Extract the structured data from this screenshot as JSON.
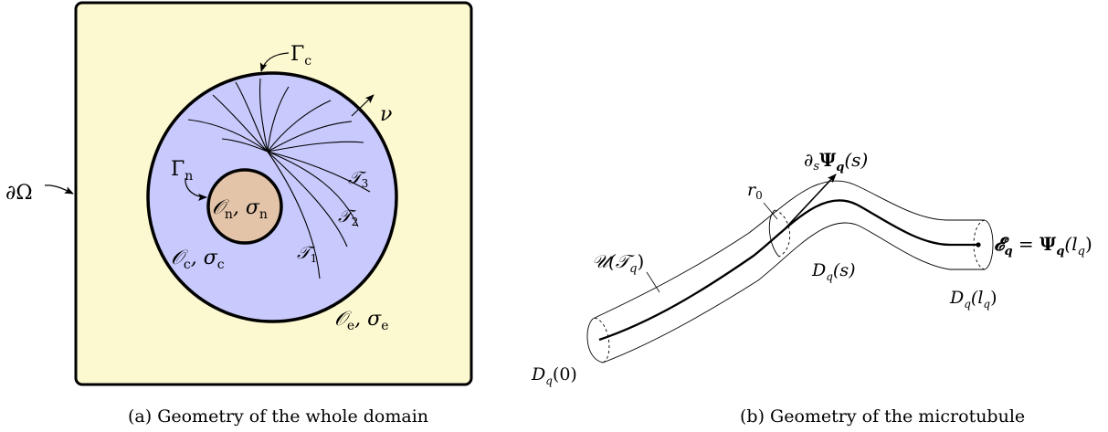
{
  "figure_a": {
    "colors": {
      "domain": "#fcf8cf",
      "cell": "#c8c9fc",
      "nucleus": "#e3c4a8"
    },
    "labels": {
      "boundary_omega": "∂Ω",
      "gamma_c": "Γ",
      "gamma_c_sub": "c",
      "nu": "ν",
      "gamma_n": "Γ",
      "gamma_n_sub": "n",
      "nucleus": "𝒪",
      "nucleus_sub": "n",
      "nucleus_sigma": ", σ",
      "nucleus_sigma_sub": "n",
      "cell": "𝒪",
      "cell_sub": "c",
      "cell_sigma": ", σ",
      "cell_sigma_sub": "c",
      "ext": "𝒪",
      "ext_sub": "e",
      "ext_sigma": ", σ",
      "ext_sigma_sub": "e",
      "t1": "𝒯",
      "t1_sub": "1",
      "t2": "𝒯",
      "t2_sub": "2",
      "t3": "𝒯",
      "t3_sub": "3"
    },
    "caption": "(a) Geometry of the whole domain"
  },
  "figure_b": {
    "labels": {
      "tangent": "∂",
      "tangent_s": "s",
      "tangent_psi": "Ψ",
      "tangent_q": "q",
      "tangent_arg": "(s)",
      "r0": "r",
      "r0_sub": "0",
      "tube": "𝒰(𝒯",
      "tube_sub": "q",
      "tube_close": ")",
      "ds_D": "D",
      "ds_sub": "q",
      "ds_arg": "(s)",
      "d0_D": "D",
      "d0_sub": "q",
      "d0_arg": "(0)",
      "dl_D": "D",
      "dl_sub": "q",
      "dl_arg": "(l",
      "dl_arg_sub": "q",
      "dl_close": ")",
      "end_E": "𝓔",
      "end_E_sub": "q",
      "end_eq": " = ",
      "end_psi": "Ψ",
      "end_psi_sub": "q",
      "end_arg": "(l",
      "end_arg_sub": "q",
      "end_close": ")"
    },
    "caption": "(b) Geometry of the microtubule"
  }
}
